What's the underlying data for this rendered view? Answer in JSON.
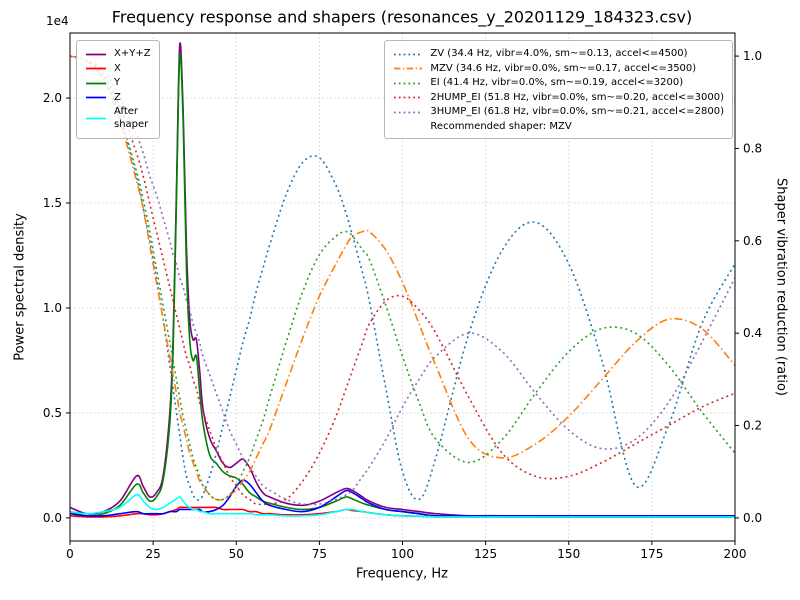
{
  "title": "Frequency response and shapers (resonances_y_20201129_184323.csv)",
  "axes": {
    "x": {
      "label": "Frequency, Hz",
      "ticks": [
        0,
        25,
        50,
        75,
        100,
        125,
        150,
        175,
        200
      ]
    },
    "y_left": {
      "label": "Power spectral density",
      "offset_text": "1e4",
      "ticks": [
        0.0,
        0.5,
        1.0,
        1.5,
        2.0
      ]
    },
    "y_right": {
      "label": "Shaper vibration reduction (ratio)",
      "ticks": [
        0.0,
        0.2,
        0.4,
        0.6,
        0.8,
        1.0
      ]
    }
  },
  "legend_note": "Recommended shaper: MZV",
  "chart_data": {
    "type": "line",
    "xlabel": "Frequency, Hz",
    "ylabel_left": "Power spectral density (1e4)",
    "ylabel_right": "Shaper vibration reduction (ratio)",
    "xlim": [
      0,
      200
    ],
    "ylim_left": [
      -0.11,
      2.31
    ],
    "ylim_right": [
      -0.05,
      1.05
    ],
    "grid": true,
    "x": [
      0,
      5,
      10,
      15,
      20,
      22,
      24,
      26,
      28,
      30,
      31,
      32,
      33,
      34,
      35,
      36,
      37,
      38,
      39,
      40,
      42,
      44,
      46,
      48,
      50,
      52,
      54,
      56,
      58,
      60,
      65,
      70,
      75,
      80,
      83,
      85,
      88,
      90,
      95,
      100,
      105,
      110,
      120,
      130,
      140,
      150,
      160,
      170,
      180,
      190,
      200
    ],
    "psd_series": [
      {
        "name": "xyz",
        "label": "X+Y+Z",
        "color": "purple",
        "axis": "left",
        "values": [
          0.05,
          0.02,
          0.03,
          0.08,
          0.2,
          0.15,
          0.1,
          0.12,
          0.2,
          0.5,
          0.85,
          1.55,
          2.25,
          1.95,
          1.3,
          0.95,
          0.85,
          0.85,
          0.7,
          0.52,
          0.38,
          0.32,
          0.26,
          0.24,
          0.26,
          0.28,
          0.24,
          0.17,
          0.12,
          0.1,
          0.07,
          0.06,
          0.08,
          0.12,
          0.14,
          0.13,
          0.1,
          0.08,
          0.05,
          0.04,
          0.03,
          0.02,
          0.01,
          0.01,
          0.01,
          0.01,
          0.01,
          0.01,
          0.01,
          0.01,
          0.01
        ]
      },
      {
        "name": "x",
        "label": "X",
        "color": "red",
        "axis": "left",
        "values": [
          0.01,
          0.005,
          0.005,
          0.01,
          0.02,
          0.02,
          0.015,
          0.015,
          0.02,
          0.03,
          0.035,
          0.04,
          0.05,
          0.05,
          0.05,
          0.05,
          0.05,
          0.05,
          0.05,
          0.05,
          0.05,
          0.05,
          0.04,
          0.04,
          0.04,
          0.04,
          0.03,
          0.03,
          0.02,
          0.02,
          0.015,
          0.015,
          0.02,
          0.03,
          0.04,
          0.035,
          0.03,
          0.025,
          0.015,
          0.01,
          0.008,
          0.005,
          0.005,
          0.005,
          0.005,
          0.005,
          0.005,
          0.005,
          0.005,
          0.005,
          0.005
        ]
      },
      {
        "name": "y",
        "label": "Y",
        "color": "green",
        "axis": "left",
        "values": [
          0.03,
          0.01,
          0.02,
          0.06,
          0.16,
          0.12,
          0.08,
          0.1,
          0.18,
          0.45,
          0.8,
          1.5,
          2.2,
          1.9,
          1.2,
          0.85,
          0.75,
          0.77,
          0.6,
          0.45,
          0.3,
          0.26,
          0.22,
          0.2,
          0.19,
          0.16,
          0.12,
          0.1,
          0.08,
          0.07,
          0.05,
          0.04,
          0.05,
          0.08,
          0.1,
          0.09,
          0.07,
          0.06,
          0.04,
          0.03,
          0.02,
          0.01,
          0.01,
          0.01,
          0.005,
          0.005,
          0.005,
          0.005,
          0.005,
          0.005,
          0.005
        ]
      },
      {
        "name": "z",
        "label": "Z",
        "color": "blue",
        "axis": "left",
        "values": [
          0.02,
          0.01,
          0.01,
          0.02,
          0.03,
          0.02,
          0.02,
          0.02,
          0.02,
          0.03,
          0.03,
          0.03,
          0.04,
          0.04,
          0.04,
          0.04,
          0.04,
          0.04,
          0.04,
          0.03,
          0.03,
          0.04,
          0.06,
          0.1,
          0.15,
          0.18,
          0.16,
          0.12,
          0.08,
          0.06,
          0.04,
          0.03,
          0.05,
          0.1,
          0.13,
          0.12,
          0.09,
          0.07,
          0.04,
          0.03,
          0.02,
          0.01,
          0.01,
          0.01,
          0.01,
          0.01,
          0.01,
          0.01,
          0.01,
          0.01,
          0.01
        ]
      },
      {
        "name": "after-shaper",
        "label": "After\nshaper",
        "color": "cyan",
        "axis": "left",
        "values": [
          0.03,
          0.02,
          0.03,
          0.05,
          0.11,
          0.08,
          0.05,
          0.04,
          0.05,
          0.07,
          0.08,
          0.09,
          0.1,
          0.08,
          0.06,
          0.05,
          0.04,
          0.04,
          0.03,
          0.03,
          0.02,
          0.02,
          0.02,
          0.02,
          0.02,
          0.02,
          0.02,
          0.015,
          0.015,
          0.015,
          0.01,
          0.01,
          0.015,
          0.03,
          0.04,
          0.04,
          0.03,
          0.025,
          0.015,
          0.01,
          0.008,
          0.005,
          0.005,
          0.005,
          0.005,
          0.005,
          0.005,
          0.005,
          0.005,
          0.005,
          0.005
        ]
      }
    ],
    "shaper_series": [
      {
        "name": "ZV",
        "label": "ZV (34.4 Hz, vibr=4.0%, sm~=0.13, accel<=4500)",
        "color": "#1f77b4",
        "dash": "dotted",
        "axis": "right",
        "values": [
          1.0,
          0.99,
          0.96,
          0.87,
          0.74,
          0.67,
          0.6,
          0.52,
          0.43,
          0.33,
          0.28,
          0.23,
          0.18,
          0.13,
          0.09,
          0.07,
          0.05,
          0.04,
          0.04,
          0.05,
          0.09,
          0.14,
          0.2,
          0.26,
          0.32,
          0.38,
          0.43,
          0.49,
          0.54,
          0.59,
          0.7,
          0.77,
          0.78,
          0.72,
          0.66,
          0.61,
          0.53,
          0.47,
          0.28,
          0.1,
          0.04,
          0.13,
          0.4,
          0.58,
          0.64,
          0.55,
          0.34,
          0.07,
          0.2,
          0.42,
          0.55
        ]
      },
      {
        "name": "MZV",
        "label": "MZV (34.6 Hz, vibr=0.0%, sm~=0.17, accel<=3500)",
        "color": "#ff7f0e",
        "dash": "dashdot",
        "axis": "right",
        "values": [
          1.0,
          0.99,
          0.95,
          0.86,
          0.73,
          0.67,
          0.59,
          0.51,
          0.43,
          0.35,
          0.31,
          0.27,
          0.23,
          0.2,
          0.17,
          0.14,
          0.12,
          0.1,
          0.08,
          0.07,
          0.05,
          0.04,
          0.04,
          0.05,
          0.06,
          0.08,
          0.1,
          0.13,
          0.16,
          0.19,
          0.29,
          0.39,
          0.48,
          0.55,
          0.59,
          0.61,
          0.62,
          0.62,
          0.58,
          0.51,
          0.42,
          0.33,
          0.17,
          0.13,
          0.16,
          0.22,
          0.3,
          0.38,
          0.43,
          0.41,
          0.33
        ]
      },
      {
        "name": "EI",
        "label": "EI (41.4 Hz, vibr=0.0%, sm~=0.19, accel<=3200)",
        "color": "#2ca02c",
        "dash": "dotted",
        "axis": "right",
        "values": [
          1.0,
          0.99,
          0.95,
          0.87,
          0.75,
          0.69,
          0.62,
          0.54,
          0.46,
          0.38,
          0.34,
          0.3,
          0.26,
          0.22,
          0.19,
          0.16,
          0.13,
          0.11,
          0.09,
          0.07,
          0.05,
          0.04,
          0.04,
          0.05,
          0.07,
          0.1,
          0.13,
          0.17,
          0.21,
          0.26,
          0.38,
          0.49,
          0.57,
          0.61,
          0.62,
          0.61,
          0.58,
          0.56,
          0.46,
          0.35,
          0.25,
          0.17,
          0.12,
          0.17,
          0.27,
          0.36,
          0.41,
          0.4,
          0.33,
          0.23,
          0.14
        ]
      },
      {
        "name": "2HUMP_EI",
        "label": "2HUMP_EI (51.8 Hz, vibr=0.0%, sm~=0.20, accel<=3000)",
        "color": "#d62728",
        "dash": "dotted",
        "axis": "right",
        "values": [
          1.0,
          0.99,
          0.96,
          0.89,
          0.79,
          0.74,
          0.68,
          0.62,
          0.56,
          0.5,
          0.47,
          0.44,
          0.41,
          0.38,
          0.35,
          0.33,
          0.3,
          0.28,
          0.25,
          0.23,
          0.19,
          0.15,
          0.12,
          0.09,
          0.07,
          0.05,
          0.04,
          0.03,
          0.03,
          0.03,
          0.04,
          0.08,
          0.14,
          0.22,
          0.28,
          0.32,
          0.38,
          0.42,
          0.47,
          0.48,
          0.45,
          0.4,
          0.26,
          0.14,
          0.09,
          0.09,
          0.12,
          0.16,
          0.2,
          0.24,
          0.27
        ]
      },
      {
        "name": "3HUMP_EI",
        "label": "3HUMP_EI (61.8 Hz, vibr=0.0%, sm~=0.21, accel<=2800)",
        "color": "#9467bd",
        "dash": "dotted",
        "axis": "right",
        "values": [
          1.0,
          0.99,
          0.97,
          0.91,
          0.83,
          0.79,
          0.74,
          0.7,
          0.65,
          0.6,
          0.57,
          0.55,
          0.52,
          0.5,
          0.47,
          0.45,
          0.42,
          0.4,
          0.38,
          0.35,
          0.31,
          0.27,
          0.23,
          0.19,
          0.16,
          0.13,
          0.11,
          0.09,
          0.07,
          0.06,
          0.04,
          0.03,
          0.03,
          0.04,
          0.05,
          0.06,
          0.09,
          0.11,
          0.17,
          0.24,
          0.3,
          0.35,
          0.4,
          0.36,
          0.27,
          0.19,
          0.15,
          0.17,
          0.25,
          0.38,
          0.52
        ]
      }
    ]
  }
}
